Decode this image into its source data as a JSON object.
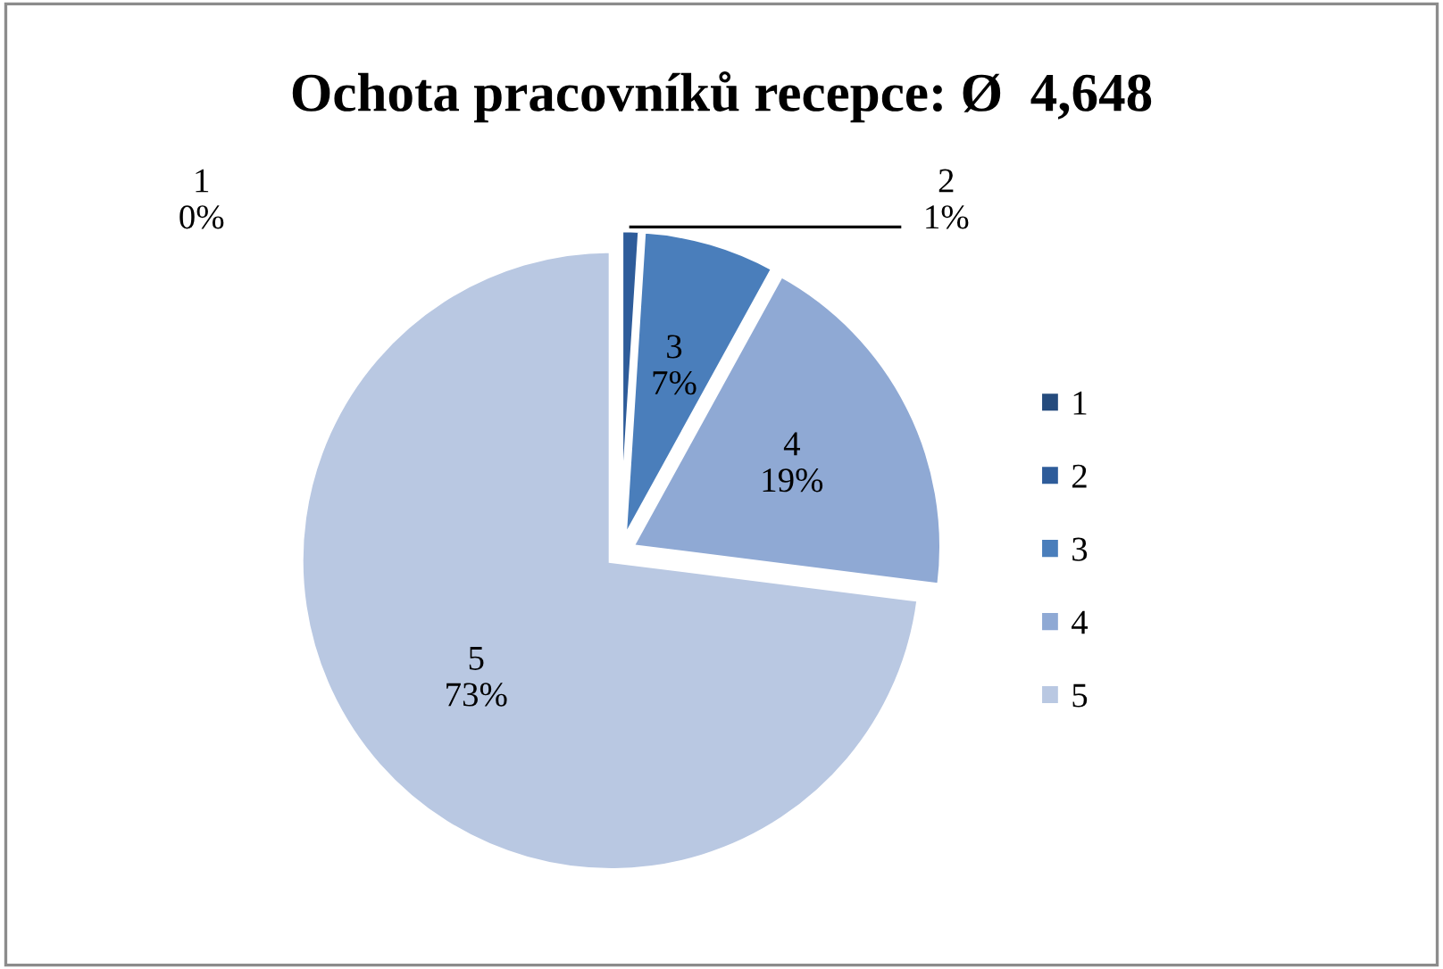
{
  "chart_data": {
    "type": "pie",
    "title": "Ochota pracovníků recepce: Ø  4,648",
    "categories": [
      "1",
      "2",
      "3",
      "4",
      "5"
    ],
    "values": [
      0,
      1,
      7,
      19,
      73
    ],
    "colors": [
      "#254b7d",
      "#2e5c9a",
      "#4a7ebb",
      "#8fa9d4",
      "#b9c8e2"
    ],
    "value_labels": [
      "0%",
      "1%",
      "7%",
      "19%",
      "73%"
    ],
    "legend": "right"
  }
}
